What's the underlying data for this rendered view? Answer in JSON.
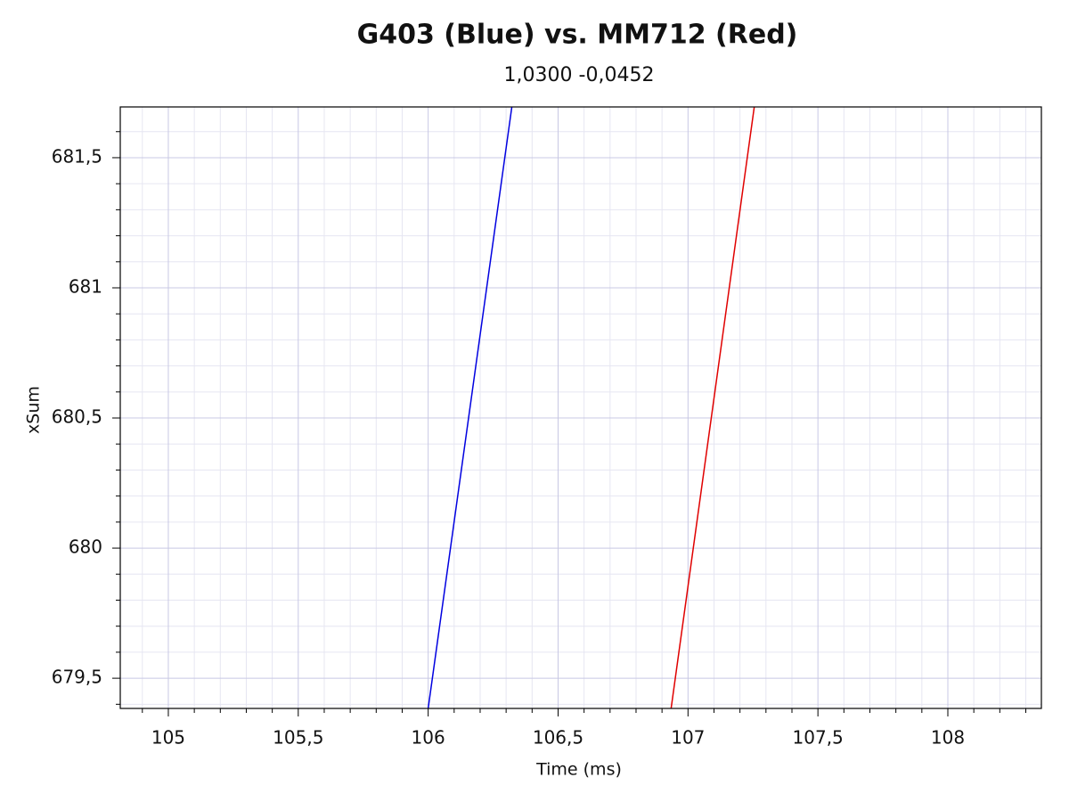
{
  "chart_data": {
    "type": "line",
    "title": "G403 (Blue) vs. MM712 (Red)",
    "subtitle": "1,0300 -0,0452",
    "x_label": "Time (ms)",
    "y_label": "xSum",
    "series": [
      {
        "color": "#0000e0",
        "x": [
          106.0,
          106.322
        ],
        "values": [
          679.384,
          681.695
        ]
      },
      {
        "color": "#e00000",
        "x": [
          106.935,
          107.255
        ],
        "values": [
          679.384,
          681.695
        ]
      }
    ],
    "xlim": [
      104.815,
      108.36
    ],
    "ylim": [
      679.384,
      681.695
    ],
    "xticks": [
      105,
      {
        "value": 105.5,
        "label": "105,5"
      },
      106,
      {
        "value": 106.5,
        "label": "106,5"
      },
      107,
      {
        "value": 107.5,
        "label": "107,5"
      },
      108
    ],
    "yticks": [
      {
        "value": 679.5,
        "label": "679,5"
      },
      680,
      {
        "value": 680.5,
        "label": "680,5"
      },
      681,
      {
        "value": 681.5,
        "label": "681,5"
      }
    ],
    "grid": true,
    "minor_grid": true
  }
}
